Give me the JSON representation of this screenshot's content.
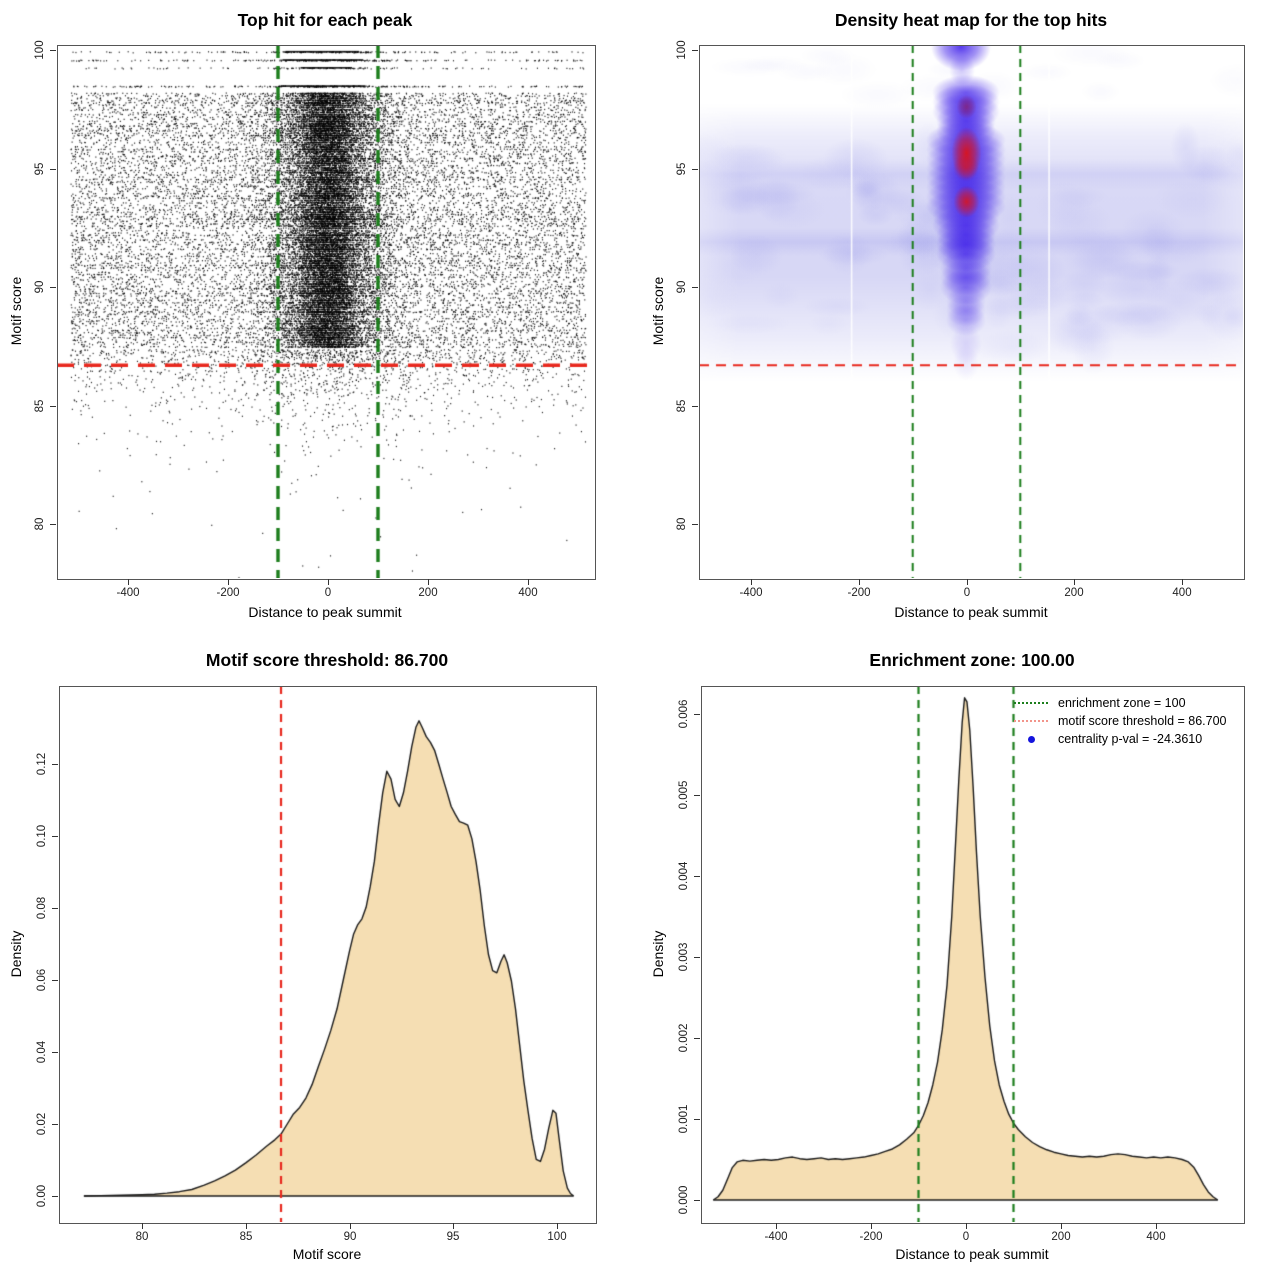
{
  "colors": {
    "threshold_red": "#e8281e",
    "zone_green": "#1c7e1c",
    "density_fill": "#f5deb3",
    "curve_stroke": "#1a1a1a",
    "heat_low": "#c9c9ef",
    "heat_mid": "#2d0ae8",
    "heat_high": "#dd1212",
    "heat_dark_core": "#96143c",
    "legend_red": "#f2948a",
    "legend_blue": "#1414dd",
    "point_black": "#000000",
    "box_border": "#555555"
  },
  "values": {
    "motif_score_threshold": "86.700",
    "enrichment_zone": "100.00",
    "centrality_pval": "-24.3610"
  },
  "chart_data": [
    {
      "type": "scatter",
      "panel": "top_left",
      "title": "Top hit for each peak",
      "xlabel": "Distance to peak summit",
      "ylabel": "Motif score",
      "xlim": [
        -542,
        574
      ],
      "ylim": [
        77.4,
        100.3
      ],
      "x_ticks": [
        -400,
        -200,
        0,
        200,
        400
      ],
      "y_ticks": [
        80,
        85,
        90,
        95,
        100
      ],
      "x_tick_labels": [
        "-400",
        "-200",
        "0",
        "200",
        "400"
      ],
      "y_tick_labels": [
        "80",
        "85",
        "90",
        "95",
        "100"
      ],
      "threshold_line_y": 86.7,
      "zone_lines_x": [
        -100,
        100
      ],
      "point_color": "#000000",
      "distribution": {
        "dense_band_score_range": [
          87.4,
          98.2
        ],
        "top_rows_scores": [
          99.93,
          99.58,
          99.25,
          98.48
        ],
        "top_rows_uniform_counts": [
          110,
          130,
          75,
          155
        ],
        "top_rows_solid_segment_x": [
          [
            -85,
            62
          ],
          [
            -90,
            70
          ],
          [
            -55,
            48
          ],
          [
            -95,
            75
          ]
        ],
        "top_rows_center_counts": [
          120,
          150,
          60,
          170
        ],
        "gap_score_range": [
          98.7,
          99.1
        ],
        "center_cluster_sd": 58,
        "tight_cluster_sd": 26,
        "uniform_x_range": [
          -515,
          515
        ],
        "sparse_decay_below": 86.6,
        "min_score": 77.5,
        "points_estimate": 30000
      }
    },
    {
      "type": "heatmap",
      "panel": "top_right",
      "title": "Density heat map for the top hits",
      "xlabel": "Distance to peak summit",
      "ylabel": "Motif score",
      "xlim": [
        -530,
        530
      ],
      "ylim": [
        77.4,
        100.3
      ],
      "x_ticks": [
        -400,
        -200,
        0,
        200,
        400
      ],
      "y_ticks": [
        80,
        85,
        90,
        95,
        100
      ],
      "x_tick_labels": [
        "-400",
        "-200",
        "0",
        "200",
        "400"
      ],
      "y_tick_labels": [
        "80",
        "85",
        "90",
        "95",
        "100"
      ],
      "threshold_line_y": 86.7,
      "zone_lines_x": [
        -100,
        100
      ],
      "background": "#ffffff",
      "band_score_range": [
        88,
        96.5
      ],
      "column_x_range": [
        -60,
        60
      ],
      "hotspots": [
        {
          "x": 0,
          "y": 95.65,
          "level": "max"
        },
        {
          "x": 0,
          "y": 93.6,
          "level": "high"
        },
        {
          "x": 0,
          "y": 97.6,
          "level": "dark"
        },
        {
          "x": -12,
          "y": 100.1,
          "level": "blue-blob"
        }
      ],
      "white_streaks_x": [
        -215,
        152
      ]
    },
    {
      "type": "area",
      "panel": "bottom_left",
      "title": "Motif score threshold: 86.700",
      "xlabel": "Motif score",
      "ylabel": "Density",
      "xlim": [
        77,
        101
      ],
      "ylim": [
        0,
        0.135
      ],
      "x_ticks": [
        80,
        85,
        90,
        95,
        100
      ],
      "y_ticks": [
        0.0,
        0.02,
        0.04,
        0.06,
        0.08,
        0.1,
        0.12
      ],
      "x_tick_labels": [
        "80",
        "85",
        "90",
        "95",
        "100"
      ],
      "y_tick_labels": [
        "0.00",
        "0.02",
        "0.04",
        "0.06",
        "0.08",
        "0.10",
        "0.12"
      ],
      "threshold_line_x": 86.7,
      "points": [
        [
          77.2,
          0
        ],
        [
          78,
          0.0001
        ],
        [
          79,
          0.0002
        ],
        [
          80,
          0.00035
        ],
        [
          80.6,
          0.0005
        ],
        [
          81.2,
          0.0008
        ],
        [
          81.8,
          0.0012
        ],
        [
          82.4,
          0.0018
        ],
        [
          83,
          0.003
        ],
        [
          83.5,
          0.0042
        ],
        [
          84,
          0.0056
        ],
        [
          84.5,
          0.0072
        ],
        [
          85,
          0.0092
        ],
        [
          85.5,
          0.0114
        ],
        [
          86,
          0.0138
        ],
        [
          86.4,
          0.0156
        ],
        [
          86.7,
          0.0172
        ],
        [
          87,
          0.02
        ],
        [
          87.3,
          0.0228
        ],
        [
          87.6,
          0.0246
        ],
        [
          87.9,
          0.0272
        ],
        [
          88.2,
          0.031
        ],
        [
          88.5,
          0.036
        ],
        [
          88.8,
          0.0408
        ],
        [
          89.1,
          0.046
        ],
        [
          89.4,
          0.052
        ],
        [
          89.7,
          0.06
        ],
        [
          90,
          0.068
        ],
        [
          90.2,
          0.0728
        ],
        [
          90.4,
          0.0754
        ],
        [
          90.6,
          0.077
        ],
        [
          90.8,
          0.0802
        ],
        [
          91,
          0.086
        ],
        [
          91.2,
          0.093
        ],
        [
          91.4,
          0.103
        ],
        [
          91.6,
          0.112
        ],
        [
          91.8,
          0.118
        ],
        [
          92,
          0.1158
        ],
        [
          92.2,
          0.1102
        ],
        [
          92.4,
          0.1082
        ],
        [
          92.6,
          0.112
        ],
        [
          92.8,
          0.118
        ],
        [
          93,
          0.1248
        ],
        [
          93.2,
          0.1302
        ],
        [
          93.35,
          0.132
        ],
        [
          93.5,
          0.1302
        ],
        [
          93.7,
          0.1276
        ],
        [
          93.9,
          0.126
        ],
        [
          94.1,
          0.1238
        ],
        [
          94.3,
          0.12
        ],
        [
          94.5,
          0.116
        ],
        [
          94.7,
          0.1122
        ],
        [
          94.9,
          0.1082
        ],
        [
          95.1,
          0.106
        ],
        [
          95.3,
          0.104
        ],
        [
          95.5,
          0.1036
        ],
        [
          95.7,
          0.103
        ],
        [
          95.9,
          0.0992
        ],
        [
          96.1,
          0.0928
        ],
        [
          96.3,
          0.0848
        ],
        [
          96.5,
          0.075
        ],
        [
          96.7,
          0.067
        ],
        [
          96.9,
          0.0626
        ],
        [
          97.1,
          0.062
        ],
        [
          97.3,
          0.0652
        ],
        [
          97.45,
          0.067
        ],
        [
          97.6,
          0.0648
        ],
        [
          97.8,
          0.0598
        ],
        [
          98,
          0.052
        ],
        [
          98.2,
          0.042
        ],
        [
          98.4,
          0.032
        ],
        [
          98.6,
          0.0238
        ],
        [
          98.8,
          0.016
        ],
        [
          99,
          0.0102
        ],
        [
          99.2,
          0.0096
        ],
        [
          99.4,
          0.013
        ],
        [
          99.6,
          0.0188
        ],
        [
          99.8,
          0.0238
        ],
        [
          99.95,
          0.023
        ],
        [
          100.1,
          0.016
        ],
        [
          100.3,
          0.007
        ],
        [
          100.5,
          0.0022
        ],
        [
          100.65,
          0.0007
        ],
        [
          100.8,
          0
        ]
      ]
    },
    {
      "type": "area",
      "panel": "bottom_right",
      "title": "Enrichment zone: 100.00",
      "xlabel": "Distance to peak summit",
      "ylabel": "Density",
      "xlim": [
        -560,
        560
      ],
      "ylim": [
        0,
        0.0064
      ],
      "x_ticks": [
        -400,
        -200,
        0,
        200,
        400
      ],
      "y_ticks": [
        0.0,
        0.001,
        0.002,
        0.003,
        0.004,
        0.005,
        0.006
      ],
      "x_tick_labels": [
        "-400",
        "-200",
        "0",
        "200",
        "400"
      ],
      "y_tick_labels": [
        "0.000",
        "0.001",
        "0.002",
        "0.003",
        "0.004",
        "0.005",
        "0.006"
      ],
      "zone_lines_x": [
        -100,
        100
      ],
      "points": [
        [
          -532,
          0
        ],
        [
          -522,
          4e-05
        ],
        [
          -512,
          0.00012
        ],
        [
          -502,
          0.00026
        ],
        [
          -492,
          0.0004
        ],
        [
          -482,
          0.00047
        ],
        [
          -470,
          0.00049
        ],
        [
          -455,
          0.00048
        ],
        [
          -440,
          0.00049
        ],
        [
          -425,
          0.0005
        ],
        [
          -410,
          0.00049
        ],
        [
          -395,
          0.0005
        ],
        [
          -380,
          0.00052
        ],
        [
          -365,
          0.00053
        ],
        [
          -350,
          0.00051
        ],
        [
          -335,
          0.0005
        ],
        [
          -320,
          0.00051
        ],
        [
          -305,
          0.00052
        ],
        [
          -290,
          0.0005
        ],
        [
          -275,
          0.00051
        ],
        [
          -260,
          0.0005
        ],
        [
          -245,
          0.00051
        ],
        [
          -230,
          0.00052
        ],
        [
          -215,
          0.00053
        ],
        [
          -200,
          0.00055
        ],
        [
          -185,
          0.00057
        ],
        [
          -170,
          0.0006
        ],
        [
          -155,
          0.00063
        ],
        [
          -140,
          0.00068
        ],
        [
          -125,
          0.00075
        ],
        [
          -110,
          0.00083
        ],
        [
          -100,
          0.00092
        ],
        [
          -90,
          0.00104
        ],
        [
          -80,
          0.0012
        ],
        [
          -70,
          0.00142
        ],
        [
          -60,
          0.0017
        ],
        [
          -50,
          0.0021
        ],
        [
          -40,
          0.00265
        ],
        [
          -30,
          0.0035
        ],
        [
          -22,
          0.0044
        ],
        [
          -15,
          0.0052
        ],
        [
          -8,
          0.0059
        ],
        [
          -3,
          0.0062
        ],
        [
          2,
          0.00615
        ],
        [
          8,
          0.0058
        ],
        [
          15,
          0.0051
        ],
        [
          22,
          0.0043
        ],
        [
          30,
          0.0035
        ],
        [
          40,
          0.00275
        ],
        [
          50,
          0.00215
        ],
        [
          60,
          0.00172
        ],
        [
          70,
          0.00142
        ],
        [
          80,
          0.00122
        ],
        [
          90,
          0.00106
        ],
        [
          100,
          0.00095
        ],
        [
          110,
          0.00087
        ],
        [
          125,
          0.00078
        ],
        [
          140,
          0.00071
        ],
        [
          155,
          0.00066
        ],
        [
          170,
          0.00062
        ],
        [
          185,
          0.00059
        ],
        [
          200,
          0.00057
        ],
        [
          215,
          0.00055
        ],
        [
          230,
          0.00054
        ],
        [
          245,
          0.00053
        ],
        [
          260,
          0.00054
        ],
        [
          275,
          0.00053
        ],
        [
          290,
          0.00054
        ],
        [
          305,
          0.00056
        ],
        [
          320,
          0.00057
        ],
        [
          335,
          0.00056
        ],
        [
          350,
          0.00054
        ],
        [
          365,
          0.00053
        ],
        [
          380,
          0.00052
        ],
        [
          395,
          0.00053
        ],
        [
          410,
          0.00052
        ],
        [
          425,
          0.00053
        ],
        [
          440,
          0.00052
        ],
        [
          455,
          0.0005
        ],
        [
          468,
          0.00047
        ],
        [
          480,
          0.0004
        ],
        [
          490,
          0.0003
        ],
        [
          500,
          0.00019
        ],
        [
          510,
          0.0001
        ],
        [
          520,
          4e-05
        ],
        [
          530,
          0
        ]
      ],
      "legend": [
        {
          "label": "enrichment zone = 100",
          "marker": "dotted-line",
          "color": "#1c7e1c"
        },
        {
          "label": "motif score threshold = 86.700",
          "marker": "dotted-line",
          "color": "#f2948a"
        },
        {
          "label": "centrality p-val = -24.3610",
          "marker": "dot",
          "color": "#1414dd"
        }
      ]
    }
  ]
}
